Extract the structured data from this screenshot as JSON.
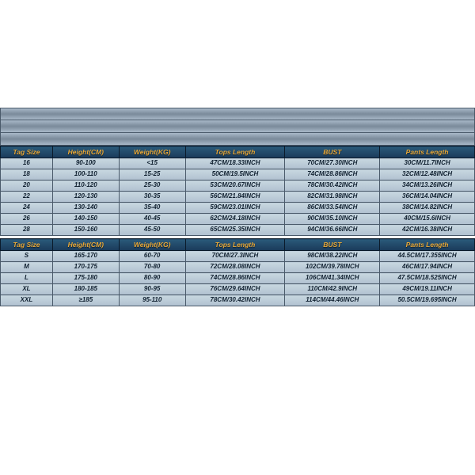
{
  "table_style": {
    "type": "table",
    "header_bg_gradient": [
      "#2a5a7a",
      "#1a3a5a"
    ],
    "header_text_color": "#e8a838",
    "row_bg_gradient": [
      "#c8d8e0",
      "#b0c0d0"
    ],
    "row_text_color": "#102030",
    "border_color": "#4a5a6a",
    "top_band_gradient": [
      "#a8b8c8",
      "#7a8a9a",
      "#a8b8c8"
    ],
    "font_style": "bold italic",
    "header_fontsize_pt": 7,
    "cell_fontsize_pt": 6
  },
  "topband_rows": 3,
  "columns": [
    "Tag Size",
    "Height(CM)",
    "Weight(KG)",
    "Tops Length",
    "BUST",
    "Pants Length"
  ],
  "col_widths_pct": [
    11,
    14,
    14,
    21,
    20,
    20
  ],
  "kids": {
    "rows": [
      {
        "tag": "16",
        "height": "90-100",
        "weight": "<15",
        "tops": "47CM/18.33INCH",
        "bust": "70CM/27.30INCH",
        "pants": "30CM/11.7INCH"
      },
      {
        "tag": "18",
        "height": "100-110",
        "weight": "15-25",
        "tops": "50CM/19.5INCH",
        "bust": "74CM/28.86INCH",
        "pants": "32CM/12.48INCH"
      },
      {
        "tag": "20",
        "height": "110-120",
        "weight": "25-30",
        "tops": "53CM/20.67INCH",
        "bust": "78CM/30.42INCH",
        "pants": "34CM/13.26INCH"
      },
      {
        "tag": "22",
        "height": "120-130",
        "weight": "30-35",
        "tops": "56CM/21.84INCH",
        "bust": "82CM/31.98INCH",
        "pants": "36CM/14.04INCH"
      },
      {
        "tag": "24",
        "height": "130-140",
        "weight": "35-40",
        "tops": "59CM/23.01INCH",
        "bust": "86CM/33.54INCH",
        "pants": "38CM/14.82INCH"
      },
      {
        "tag": "26",
        "height": "140-150",
        "weight": "40-45",
        "tops": "62CM/24.18INCH",
        "bust": "90CM/35.10INCH",
        "pants": "40CM/15.6INCH"
      },
      {
        "tag": "28",
        "height": "150-160",
        "weight": "45-50",
        "tops": "65CM/25.35INCH",
        "bust": "94CM/36.66INCH",
        "pants": "42CM/16.38INCH"
      }
    ]
  },
  "adults": {
    "rows": [
      {
        "tag": "S",
        "height": "165-170",
        "weight": "60-70",
        "tops": "70CM/27.3INCH",
        "bust": "98CM/38.22INCH",
        "pants": "44.5CM/17.355INCH"
      },
      {
        "tag": "M",
        "height": "170-175",
        "weight": "70-80",
        "tops": "72CM/28.08INCH",
        "bust": "102CM/39.78INCH",
        "pants": "46CM/17.94INCH"
      },
      {
        "tag": "L",
        "height": "175-180",
        "weight": "80-90",
        "tops": "74CM/28.86INCH",
        "bust": "106CM/41.34INCH",
        "pants": "47.5CM/18.525INCH"
      },
      {
        "tag": "XL",
        "height": "180-185",
        "weight": "90-95",
        "tops": "76CM/29.64INCH",
        "bust": "110CM/42.9INCH",
        "pants": "49CM/19.11INCH"
      },
      {
        "tag": "XXL",
        "height": "≥185",
        "weight": "95-110",
        "tops": "78CM/30.42INCH",
        "bust": "114CM/44.46INCH",
        "pants": "50.5CM/19.695INCH"
      }
    ]
  }
}
